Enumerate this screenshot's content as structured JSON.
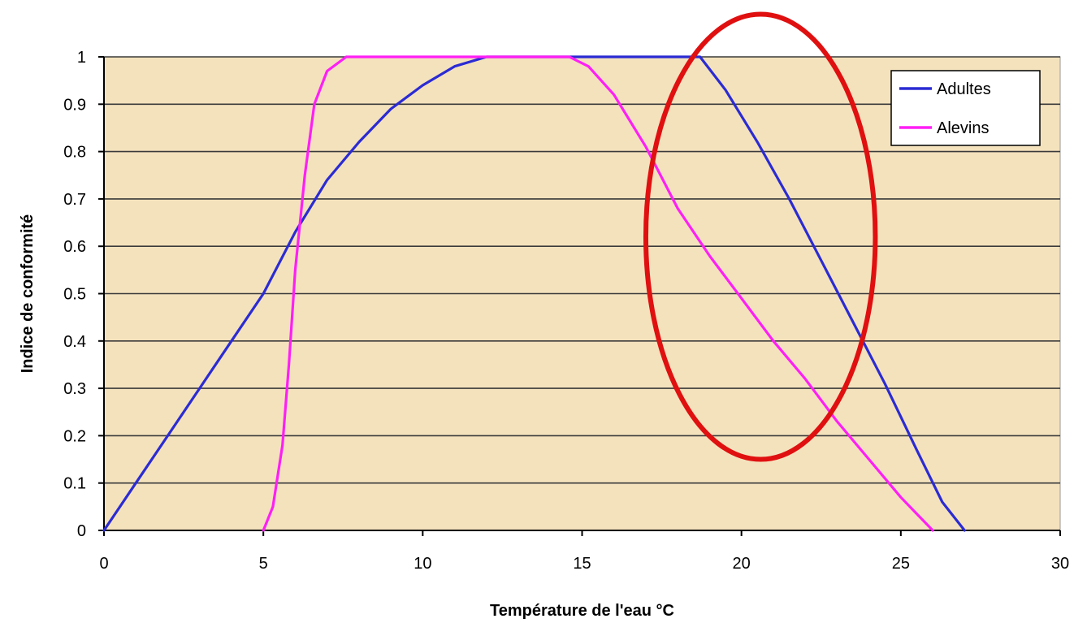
{
  "chart_data": {
    "type": "line",
    "title": "",
    "xlabel": "Température de l'eau °C",
    "ylabel": "Indice de conformité",
    "xlim": [
      0,
      30
    ],
    "ylim": [
      0,
      1
    ],
    "x_ticks": [
      "0",
      "5",
      "10",
      "15",
      "20",
      "25",
      "30"
    ],
    "y_ticks": [
      "0",
      "0.1",
      "0.2",
      "0.3",
      "0.4",
      "0.5",
      "0.6",
      "0.7",
      "0.8",
      "0.9",
      "1"
    ],
    "grid": "horizontal",
    "legend": "top-right",
    "background_color": "#f4e2bd",
    "series": [
      {
        "name": "Adultes",
        "color": "#2b2bd4",
        "points": [
          [
            0,
            0
          ],
          [
            1,
            0.1
          ],
          [
            2,
            0.2
          ],
          [
            3,
            0.3
          ],
          [
            4,
            0.4
          ],
          [
            5,
            0.5
          ],
          [
            6,
            0.63
          ],
          [
            7,
            0.74
          ],
          [
            8,
            0.82
          ],
          [
            9,
            0.89
          ],
          [
            10,
            0.94
          ],
          [
            11,
            0.98
          ],
          [
            12,
            1
          ],
          [
            13,
            1
          ],
          [
            14,
            1
          ],
          [
            15,
            1
          ],
          [
            16,
            1
          ],
          [
            17,
            1
          ],
          [
            18,
            1
          ],
          [
            18.7,
            1
          ],
          [
            19.5,
            0.93
          ],
          [
            20.5,
            0.82
          ],
          [
            21.5,
            0.7
          ],
          [
            22.5,
            0.57
          ],
          [
            23.5,
            0.44
          ],
          [
            24.5,
            0.31
          ],
          [
            25.5,
            0.17
          ],
          [
            26.3,
            0.06
          ],
          [
            27,
            0
          ]
        ]
      },
      {
        "name": "Alevins",
        "color": "#ff1ff5",
        "points": [
          [
            5,
            0
          ],
          [
            5.3,
            0.05
          ],
          [
            5.6,
            0.18
          ],
          [
            5.8,
            0.35
          ],
          [
            6,
            0.55
          ],
          [
            6.3,
            0.75
          ],
          [
            6.6,
            0.9
          ],
          [
            7,
            0.97
          ],
          [
            7.6,
            1
          ],
          [
            10,
            1
          ],
          [
            12,
            1
          ],
          [
            14,
            1
          ],
          [
            14.6,
            1
          ],
          [
            15.2,
            0.98
          ],
          [
            16,
            0.92
          ],
          [
            17,
            0.81
          ],
          [
            18,
            0.68
          ],
          [
            19,
            0.58
          ],
          [
            20,
            0.49
          ],
          [
            21,
            0.4
          ],
          [
            22,
            0.32
          ],
          [
            23,
            0.23
          ],
          [
            24,
            0.15
          ],
          [
            25,
            0.07
          ],
          [
            26,
            0
          ]
        ]
      }
    ],
    "annotations": [
      {
        "shape": "ellipse",
        "color": "#e01010",
        "cx": 20.6,
        "cy": 0.62,
        "rx": 3.6,
        "ry": 0.47
      }
    ]
  }
}
